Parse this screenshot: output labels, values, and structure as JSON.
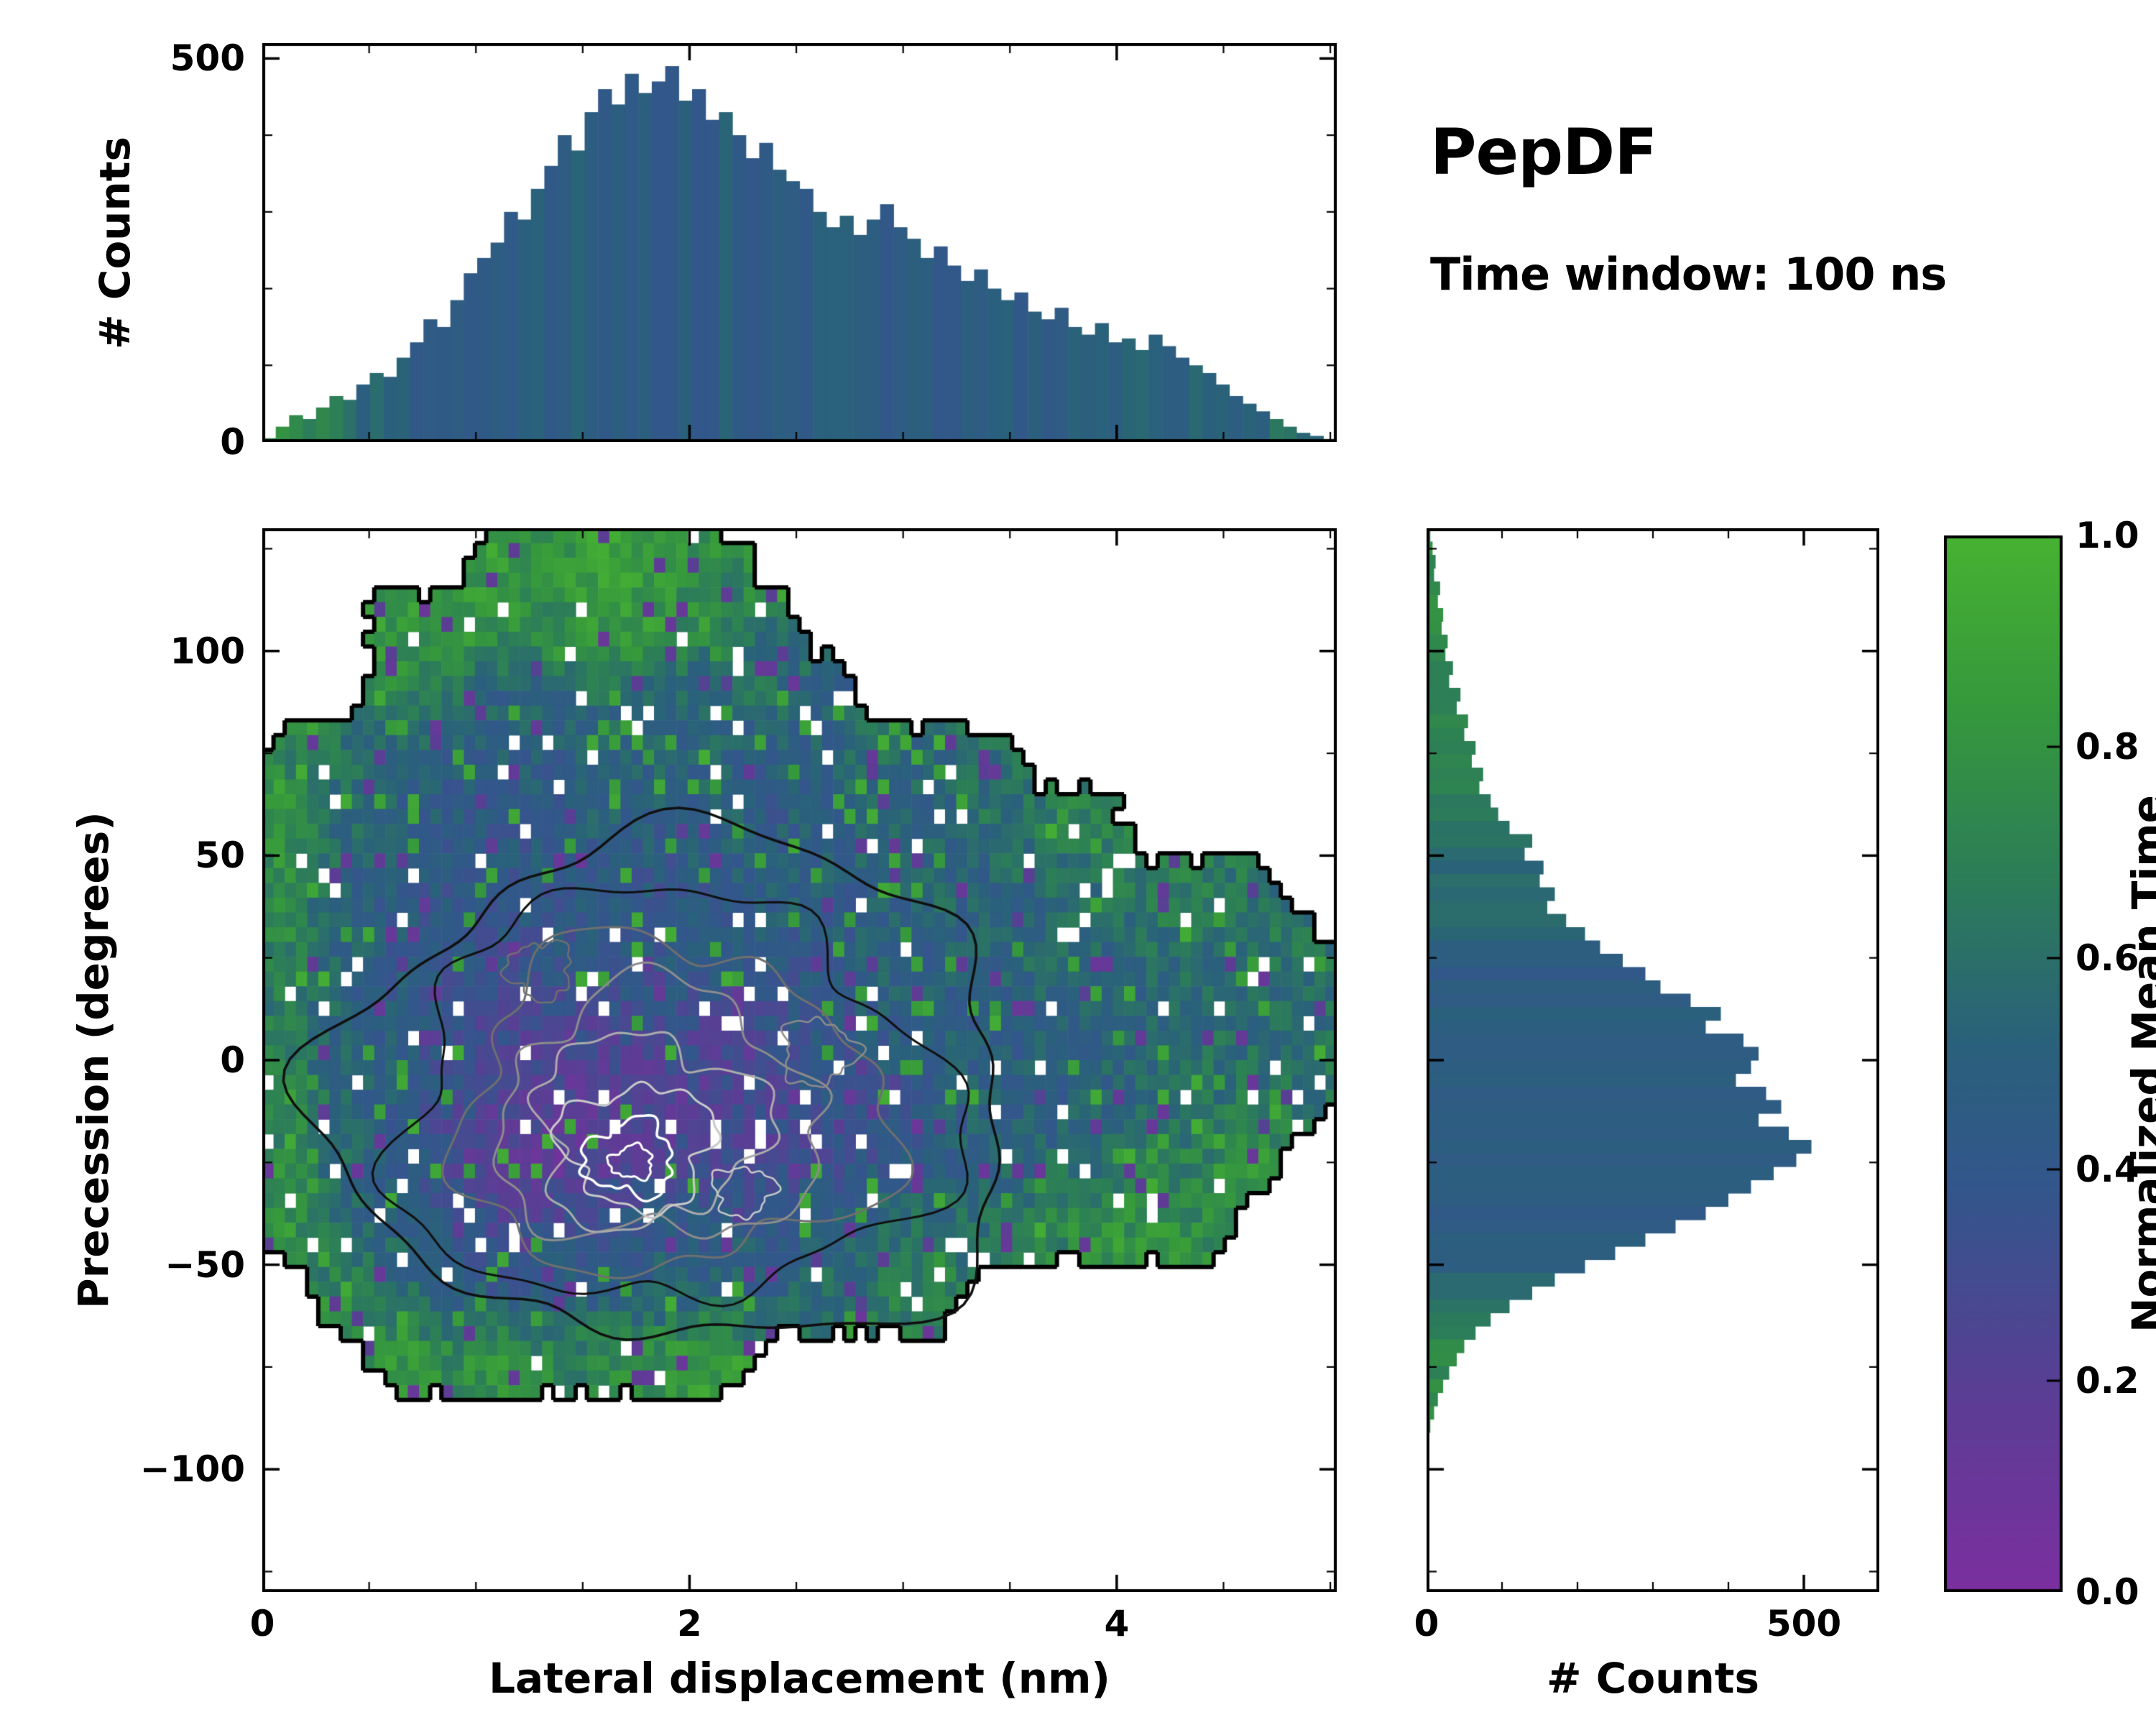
{
  "header": {
    "title": "PepDF",
    "subtitle": "Time window: 100 ns"
  },
  "colorbar": {
    "label": "Normalized Mean Time",
    "ticks": [
      {
        "v": 0.0,
        "label": "0.0"
      },
      {
        "v": 0.2,
        "label": "0.2"
      },
      {
        "v": 0.4,
        "label": "0.4"
      },
      {
        "v": 0.6,
        "label": "0.6"
      },
      {
        "v": 0.8,
        "label": "0.8"
      },
      {
        "v": 1.0,
        "label": "1.0"
      }
    ]
  },
  "colormap": {
    "stops": [
      [
        0.0,
        "#7b2f9f"
      ],
      [
        0.18,
        "#5c3d95"
      ],
      [
        0.38,
        "#33568c"
      ],
      [
        0.52,
        "#2a617b"
      ],
      [
        0.68,
        "#2c7e57"
      ],
      [
        0.84,
        "#36993c"
      ],
      [
        1.0,
        "#47b232"
      ]
    ]
  },
  "chart_data": [
    {
      "type": "bar",
      "name": "top marginal histogram of lateral displacement",
      "xlabel": "Lateral displacement (nm)",
      "ylabel": "# Counts",
      "x_range": [
        0,
        5.03
      ],
      "ylim": [
        0,
        520
      ],
      "yticks": [
        {
          "v": 0,
          "label": "0"
        },
        {
          "v": 500,
          "label": "500"
        }
      ],
      "yticks_minor": [
        100,
        200,
        300,
        400
      ],
      "n_bins": 80,
      "values": [
        5,
        20,
        35,
        30,
        45,
        60,
        55,
        75,
        90,
        85,
        110,
        130,
        160,
        150,
        185,
        220,
        240,
        260,
        300,
        290,
        330,
        360,
        400,
        380,
        430,
        460,
        440,
        480,
        455,
        470,
        490,
        445,
        460,
        420,
        430,
        400,
        370,
        390,
        355,
        340,
        330,
        300,
        280,
        295,
        270,
        290,
        310,
        280,
        265,
        240,
        255,
        230,
        210,
        225,
        200,
        185,
        195,
        170,
        160,
        175,
        150,
        140,
        155,
        130,
        135,
        120,
        140,
        125,
        110,
        100,
        90,
        75,
        60,
        50,
        40,
        30,
        20,
        12,
        8,
        4
      ]
    },
    {
      "type": "heatmap",
      "name": "joint distribution of lateral displacement and precession colored by normalized mean time",
      "xlabel": "Lateral displacement (nm)",
      "ylabel": "Precession (degrees)",
      "colorbar_label": "Normalized Mean Time",
      "xlim": [
        0,
        5.03
      ],
      "ylim": [
        -130,
        130
      ],
      "xticks": [
        {
          "v": 0,
          "label": "0"
        },
        {
          "v": 2,
          "label": "2"
        },
        {
          "v": 4,
          "label": "4"
        }
      ],
      "xticks_minor": [
        0.5,
        1,
        1.5,
        2.5,
        3,
        3.5,
        4.5,
        5
      ],
      "yticks": [
        {
          "v": 100,
          "label": "100"
        },
        {
          "v": 50,
          "label": "50"
        },
        {
          "v": 0,
          "label": "0"
        },
        {
          "v": -50,
          "label": "−50"
        },
        {
          "v": -100,
          "label": "−100"
        }
      ],
      "yticks_minor": [
        -125,
        -75,
        -25,
        25,
        75,
        125
      ],
      "grid_x_centers": [
        0.125,
        0.375,
        0.625,
        0.875,
        1.125,
        1.375,
        1.625,
        1.875,
        2.125,
        2.375,
        2.625,
        2.875,
        3.125,
        3.375,
        3.625,
        3.875,
        4.125,
        4.375,
        4.625,
        4.875
      ],
      "grid_y_centers": [
        121.9,
        105.6,
        89.4,
        73.1,
        56.9,
        40.6,
        24.4,
        8.1,
        -8.1,
        -24.4,
        -40.6,
        -56.9,
        -73.1,
        -89.4,
        -105.6,
        -121.9
      ],
      "mean_time_grid": [
        [
          -1,
          -1,
          -1,
          -1,
          0.85,
          0.8,
          0.9,
          0.8,
          0.75,
          -1,
          -1,
          -1,
          -1,
          -1,
          -1,
          -1,
          -1,
          -1,
          -1,
          -1
        ],
        [
          -1,
          -1,
          0.8,
          0.85,
          0.8,
          0.75,
          0.85,
          0.8,
          0.7,
          0.6,
          -1,
          -1,
          -1,
          -1,
          -1,
          -1,
          -1,
          -1,
          -1,
          -1
        ],
        [
          -1,
          -1,
          0.75,
          0.6,
          0.5,
          0.55,
          0.6,
          0.5,
          0.55,
          0.6,
          0.5,
          -1,
          -1,
          -1,
          -1,
          -1,
          -1,
          -1,
          -1,
          -1
        ],
        [
          0.7,
          0.6,
          0.5,
          0.45,
          0.5,
          0.45,
          0.5,
          0.55,
          0.5,
          0.45,
          0.5,
          0.6,
          0.55,
          0.6,
          -1,
          -1,
          -1,
          -1,
          -1,
          -1
        ],
        [
          0.8,
          0.55,
          0.5,
          0.45,
          0.4,
          0.45,
          0.5,
          0.45,
          0.5,
          0.45,
          0.5,
          0.55,
          0.5,
          0.6,
          0.65,
          0.7,
          -1,
          -1,
          -1,
          -1
        ],
        [
          0.75,
          0.5,
          0.45,
          0.4,
          0.45,
          0.4,
          0.45,
          0.4,
          0.45,
          0.5,
          0.45,
          0.5,
          0.55,
          0.5,
          0.55,
          0.6,
          0.65,
          0.7,
          0.6,
          -1
        ],
        [
          0.7,
          0.5,
          0.45,
          0.4,
          0.35,
          0.4,
          0.45,
          0.4,
          0.45,
          0.4,
          0.45,
          0.5,
          0.45,
          0.5,
          0.55,
          0.5,
          0.55,
          0.6,
          0.65,
          0.6
        ],
        [
          0.65,
          0.5,
          0.45,
          0.35,
          0.3,
          0.25,
          0.3,
          0.35,
          0.3,
          0.35,
          0.4,
          0.45,
          0.5,
          0.45,
          0.5,
          0.55,
          0.5,
          0.6,
          0.55,
          0.6
        ],
        [
          0.7,
          0.55,
          0.45,
          0.35,
          0.25,
          0.2,
          0.25,
          0.2,
          0.25,
          0.3,
          0.35,
          0.4,
          0.45,
          0.5,
          0.45,
          0.5,
          0.55,
          0.6,
          0.65,
          0.6
        ],
        [
          0.75,
          0.55,
          0.45,
          0.3,
          0.2,
          0.15,
          0.2,
          0.25,
          0.3,
          0.25,
          0.35,
          0.4,
          0.45,
          0.5,
          0.55,
          0.6,
          0.65,
          0.7,
          0.75,
          -1
        ],
        [
          0.8,
          0.6,
          0.5,
          0.4,
          0.3,
          0.35,
          0.4,
          0.45,
          0.4,
          0.45,
          0.5,
          0.55,
          0.6,
          0.65,
          0.7,
          0.75,
          0.8,
          0.75,
          -1,
          -1
        ],
        [
          -1,
          0.7,
          0.6,
          0.5,
          0.45,
          0.5,
          0.45,
          0.5,
          0.55,
          0.5,
          0.6,
          0.65,
          0.7,
          -1,
          -1,
          -1,
          -1,
          -1,
          -1,
          -1
        ],
        [
          -1,
          -1,
          0.8,
          0.75,
          0.8,
          0.7,
          0.75,
          0.8,
          0.85,
          -1,
          -1,
          -1,
          -1,
          -1,
          -1,
          -1,
          -1,
          -1,
          -1,
          -1
        ],
        [
          -1,
          -1,
          -1,
          -1,
          -1,
          -1,
          -1,
          -1,
          -1,
          -1,
          -1,
          -1,
          -1,
          -1,
          -1,
          -1,
          -1,
          -1,
          -1,
          -1
        ],
        [
          -1,
          -1,
          -1,
          -1,
          -1,
          -1,
          -1,
          -1,
          -1,
          -1,
          -1,
          -1,
          -1,
          -1,
          -1,
          -1,
          -1,
          -1,
          -1,
          -1
        ],
        [
          -1,
          -1,
          -1,
          -1,
          -1,
          -1,
          -1,
          -1,
          -1,
          -1,
          -1,
          -1,
          -1,
          -1,
          -1,
          -1,
          -1,
          -1,
          -1,
          -1
        ]
      ],
      "contour_rings": [
        {
          "cx": 1.95,
          "cy": -8,
          "rx": 1.6,
          "ry": 62,
          "color": "#101010",
          "lw": 3.5,
          "wob": 0.16,
          "seed": 11
        },
        {
          "cx": 1.9,
          "cy": -10,
          "rx": 1.28,
          "ry": 50,
          "color": "#101010",
          "lw": 3,
          "wob": 0.2,
          "seed": 22
        },
        {
          "cx": 1.9,
          "cy": -12,
          "rx": 1.0,
          "ry": 40,
          "color": "#6f6f6f",
          "lw": 3,
          "wob": 0.22,
          "seed": 33
        },
        {
          "cx": 1.85,
          "cy": -14,
          "rx": 0.75,
          "ry": 31,
          "color": "#8c8c8c",
          "lw": 3,
          "wob": 0.24,
          "seed": 44
        },
        {
          "cx": 1.8,
          "cy": -17,
          "rx": 0.53,
          "ry": 23,
          "color": "#ababab",
          "lw": 3,
          "wob": 0.28,
          "seed": 55
        },
        {
          "cx": 1.76,
          "cy": -21,
          "rx": 0.35,
          "ry": 15,
          "color": "#c9c9c9",
          "lw": 3,
          "wob": 0.28,
          "seed": 66
        },
        {
          "cx": 1.72,
          "cy": -24,
          "rx": 0.21,
          "ry": 9,
          "color": "#ffffff",
          "lw": 3.5,
          "wob": 0.3,
          "seed": 77
        },
        {
          "cx": 1.73,
          "cy": -25,
          "rx": 0.1,
          "ry": 4,
          "color": "#ffffff",
          "lw": 3,
          "wob": 0.28,
          "seed": 88
        },
        {
          "cx": 2.6,
          "cy": 2,
          "rx": 0.17,
          "ry": 8,
          "color": "#8c8c8c",
          "lw": 2.5,
          "wob": 0.3,
          "seed": 99
        },
        {
          "cx": 2.25,
          "cy": -32,
          "rx": 0.14,
          "ry": 6,
          "color": "#c9c9c9",
          "lw": 2.5,
          "wob": 0.3,
          "seed": 111
        },
        {
          "cx": 1.3,
          "cy": 22,
          "rx": 0.15,
          "ry": 7,
          "color": "#6f6f6f",
          "lw": 2.5,
          "wob": 0.3,
          "seed": 122
        }
      ]
    },
    {
      "type": "bar",
      "orientation": "horizontal",
      "name": "right marginal histogram of precession",
      "xlabel": "# Counts",
      "ylabel": "Precession (degrees)",
      "y_range": [
        130,
        -130
      ],
      "xlim": [
        0,
        600
      ],
      "xticks": [
        {
          "v": 0,
          "label": "0"
        },
        {
          "v": 500,
          "label": "500"
        }
      ],
      "xticks_minor": [
        100,
        200,
        300,
        400
      ],
      "n_bins": 80,
      "values": [
        5,
        8,
        12,
        10,
        18,
        15,
        22,
        20,
        28,
        25,
        35,
        30,
        45,
        40,
        55,
        50,
        65,
        60,
        75,
        70,
        85,
        95,
        110,
        140,
        130,
        155,
        150,
        170,
        160,
        185,
        210,
        230,
        260,
        290,
        310,
        350,
        390,
        370,
        420,
        440,
        430,
        410,
        450,
        470,
        440,
        480,
        510,
        490,
        460,
        430,
        400,
        370,
        330,
        290,
        250,
        210,
        170,
        140,
        110,
        85,
        65,
        50,
        40,
        30,
        22,
        15,
        10,
        5,
        0,
        0,
        0,
        0,
        0,
        0,
        0,
        0,
        0,
        0,
        0,
        0
      ]
    }
  ]
}
